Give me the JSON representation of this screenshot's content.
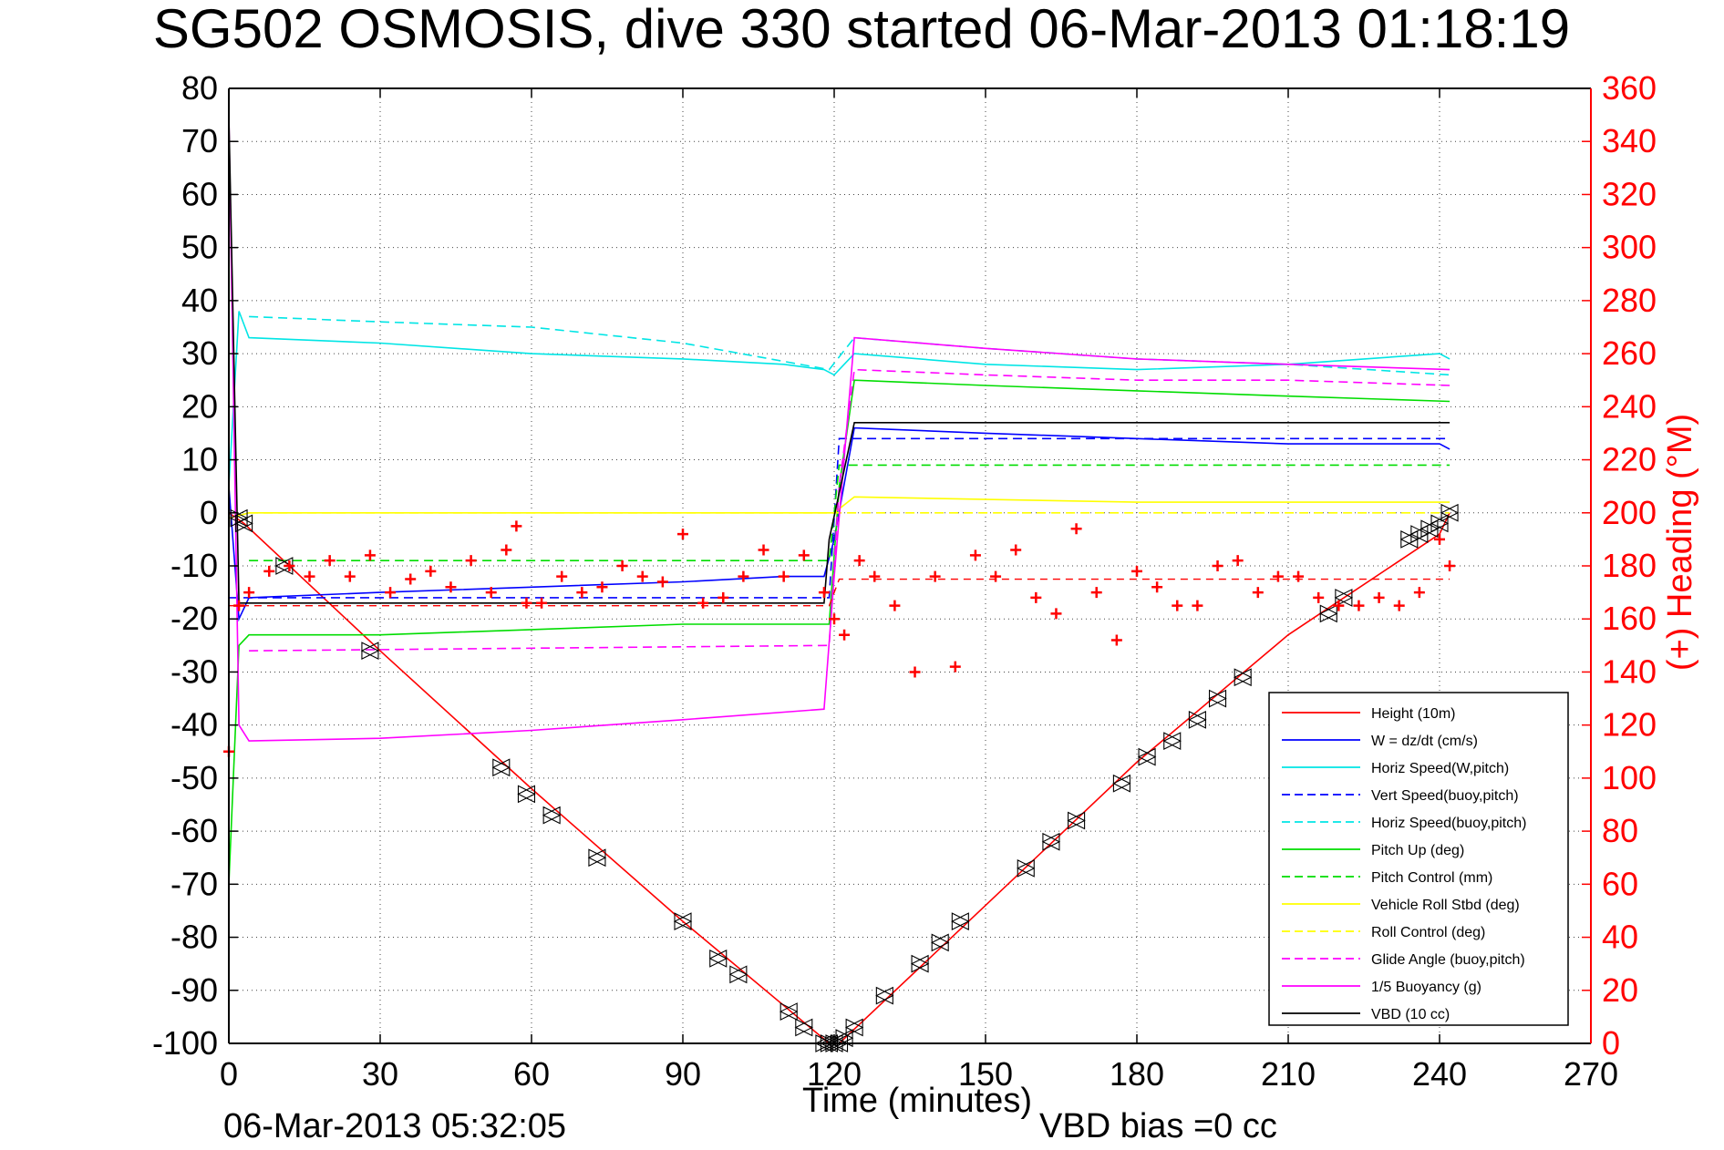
{
  "chart_data": {
    "type": "line",
    "title": "SG502 OSMOSIS, dive 330 started 06-Mar-2013 01:18:19",
    "xlabel": "Time (minutes)",
    "ylabel": "",
    "y2label": "(+) Heading (°M)",
    "footer_left": "06-Mar-2013 05:32:05",
    "footer_right": "VBD bias =0 cc",
    "xlim": [
      0,
      270
    ],
    "ylim": [
      -100,
      80
    ],
    "y2lim": [
      0,
      360
    ],
    "xticks": [
      "0",
      "30",
      "60",
      "90",
      "120",
      "150",
      "180",
      "210",
      "240",
      "270"
    ],
    "yticks": [
      "80",
      "70",
      "60",
      "50",
      "40",
      "30",
      "20",
      "10",
      "0",
      "-10",
      "-20",
      "-30",
      "-40",
      "-50",
      "-60",
      "-70",
      "-80",
      "-90",
      "-100"
    ],
    "y2ticks": [
      "360",
      "340",
      "320",
      "300",
      "280",
      "260",
      "240",
      "220",
      "200",
      "180",
      "160",
      "140",
      "120",
      "100",
      "80",
      "60",
      "40",
      "20",
      "0"
    ],
    "grid": true,
    "legend_position": "bottom-right",
    "series": [
      {
        "name": "Height (10m)",
        "color": "#ff0000",
        "style": "solid",
        "x": [
          0,
          3,
          30,
          60,
          90,
          119,
          121,
          150,
          180,
          210,
          240,
          242
        ],
        "y": [
          0,
          -2,
          -26,
          -52,
          -77,
          -100,
          -100,
          -74,
          -47,
          -23,
          -4,
          0
        ]
      },
      {
        "name": "W = dz/dt (cm/s)",
        "color": "#0000ff",
        "style": "solid",
        "x": [
          0,
          2,
          4,
          30,
          60,
          90,
          110,
          118,
          120,
          124,
          150,
          180,
          210,
          240,
          242
        ],
        "y": [
          5,
          -20,
          -16,
          -15,
          -14,
          -13,
          -12,
          -12,
          -5,
          16,
          15,
          14,
          13,
          13,
          12
        ]
      },
      {
        "name": "Horiz Speed(W,pitch)",
        "color": "#00e5e5",
        "style": "solid",
        "x": [
          0,
          2,
          4,
          30,
          60,
          90,
          110,
          118,
          120,
          124,
          150,
          180,
          210,
          240,
          242
        ],
        "y": [
          5,
          38,
          33,
          32,
          30,
          29,
          28,
          27,
          26,
          30,
          28,
          27,
          28,
          30,
          29
        ]
      },
      {
        "name": "Vert Speed(buoy,pitch)",
        "color": "#0000ff",
        "style": "dashed",
        "x": [
          0,
          4,
          119,
          121,
          242
        ],
        "y": [
          -16,
          -16,
          -16,
          14,
          14
        ]
      },
      {
        "name": "Horiz Speed(buoy,pitch)",
        "color": "#00e5e5",
        "style": "dashed",
        "x": [
          4,
          30,
          60,
          90,
          119,
          124,
          150,
          180,
          210,
          242
        ],
        "y": [
          37,
          36,
          35,
          32,
          27,
          33,
          31,
          29,
          28,
          26
        ]
      },
      {
        "name": "Pitch Up (deg)",
        "color": "#00dd00",
        "style": "solid",
        "x": [
          0,
          2,
          4,
          30,
          60,
          90,
          119,
          121,
          124,
          150,
          180,
          210,
          242
        ],
        "y": [
          -70,
          -25,
          -23,
          -23,
          -22,
          -21,
          -21,
          5,
          25,
          24,
          23,
          22,
          21
        ]
      },
      {
        "name": "Pitch Control (mm)",
        "color": "#00dd00",
        "style": "dashed",
        "x": [
          4,
          119,
          121,
          242
        ],
        "y": [
          -9,
          -9,
          9,
          9
        ]
      },
      {
        "name": "Vehicle Roll Stbd (deg)",
        "color": "#ffff00",
        "style": "solid",
        "x": [
          0,
          4,
          60,
          120,
          124,
          180,
          242
        ],
        "y": [
          -1,
          0,
          0,
          0,
          3,
          2,
          2
        ]
      },
      {
        "name": "Roll Control (deg)",
        "color": "#ffff00",
        "style": "dashed",
        "x": [
          4,
          119,
          124,
          242
        ],
        "y": [
          0,
          0,
          0,
          0
        ]
      },
      {
        "name": "Glide Angle (buoy,pitch)",
        "color": "#ff00ff",
        "style": "dashed",
        "x": [
          4,
          119,
          121,
          124,
          150,
          180,
          210,
          242
        ],
        "y": [
          -26,
          -25,
          5,
          27,
          26,
          25,
          25,
          24
        ]
      },
      {
        "name": "1/5 Buoyancy (g)",
        "color": "#ff00ff",
        "style": "solid",
        "x": [
          0,
          2,
          4,
          30,
          60,
          90,
          118,
          120,
          124,
          150,
          180,
          210,
          242
        ],
        "y": [
          75,
          -40,
          -43,
          -42.5,
          -41,
          -39,
          -37,
          -12,
          33,
          31,
          29,
          28,
          27
        ]
      },
      {
        "name": "VBD (10 cc)",
        "color": "#000000",
        "style": "solid",
        "x": [
          0,
          2,
          4,
          118,
          119,
          124,
          242
        ],
        "y": [
          75,
          -17,
          -17,
          -17,
          -5,
          17,
          17
        ]
      }
    ],
    "heading_series": {
      "name": "Heading",
      "axis": "right",
      "color": "#ff0000",
      "marker": "+",
      "x": [
        0,
        2,
        4,
        8,
        12,
        16,
        20,
        24,
        28,
        32,
        36,
        40,
        44,
        48,
        52,
        55,
        57,
        59,
        62,
        66,
        70,
        74,
        78,
        82,
        86,
        90,
        94,
        98,
        102,
        106,
        110,
        114,
        118,
        120,
        122,
        125,
        128,
        132,
        136,
        140,
        144,
        148,
        152,
        156,
        160,
        164,
        168,
        172,
        176,
        180,
        184,
        188,
        192,
        196,
        200,
        204,
        208,
        212,
        216,
        220,
        224,
        228,
        232,
        236,
        240,
        242
      ],
      "y": [
        110,
        165,
        170,
        178,
        180,
        176,
        182,
        176,
        184,
        170,
        175,
        178,
        172,
        182,
        170,
        186,
        195,
        166,
        166,
        176,
        170,
        172,
        180,
        176,
        174,
        192,
        166,
        168,
        176,
        186,
        176,
        184,
        170,
        160,
        154,
        182,
        176,
        165,
        140,
        176,
        142,
        184,
        176,
        186,
        168,
        162,
        194,
        170,
        152,
        178,
        172,
        165,
        165,
        180,
        182,
        170,
        176,
        176,
        168,
        165,
        165,
        168,
        165,
        170,
        190,
        180
      ]
    },
    "heading_mean": {
      "color": "#ff0000",
      "style": "dashed",
      "x": [
        0,
        119,
        121,
        242
      ],
      "y": [
        165,
        165,
        175,
        175
      ]
    },
    "markers": {
      "symbol": "triangles",
      "color": "#000000",
      "x": [
        2,
        3,
        11,
        28,
        54,
        59,
        64,
        73,
        90,
        97,
        101,
        111,
        114,
        118,
        119,
        120,
        121,
        122,
        124,
        130,
        137,
        141,
        145,
        158,
        163,
        168,
        177,
        182,
        187,
        192,
        196,
        201,
        218,
        221,
        234,
        236,
        238,
        240,
        242
      ],
      "y": [
        -1,
        -2,
        -10,
        -26,
        -48,
        -53,
        -57,
        -65,
        -77,
        -84,
        -87,
        -94,
        -97,
        -100,
        -100,
        -100,
        -100,
        -99,
        -97,
        -91,
        -85,
        -81,
        -77,
        -67,
        -62,
        -58,
        -51,
        -46,
        -43,
        -39,
        -35,
        -31,
        -19,
        -16,
        -5,
        -4,
        -3,
        -2,
        0
      ]
    }
  }
}
